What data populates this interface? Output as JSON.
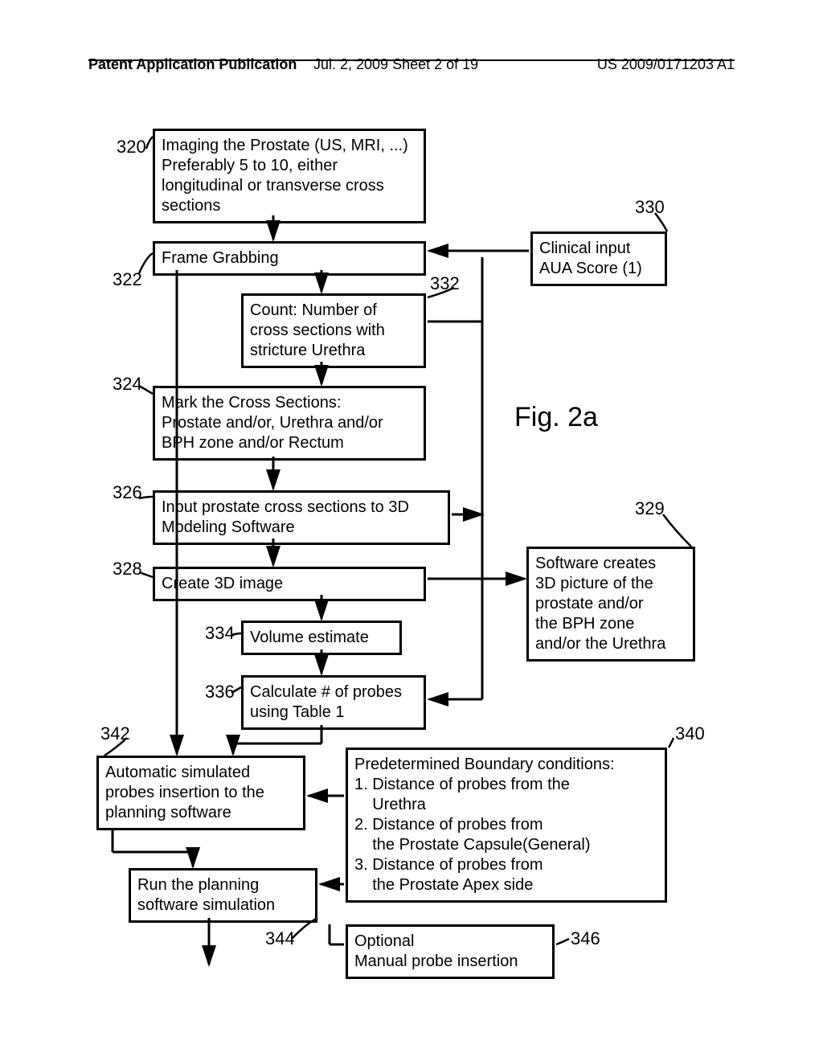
{
  "header": {
    "left": "Patent Application Publication",
    "mid": "Jul. 2, 2009  Sheet 2 of 19",
    "right": "US 2009/0171203 A1"
  },
  "figure_label": "Fig. 2a",
  "boxes": {
    "b320": "Imaging the Prostate (US, MRI, ...)\nPreferably 5 to 10, either\nlongitudinal or transverse cross\nsections",
    "b322": "Frame Grabbing",
    "b332": "Count: Number of\ncross sections with\nstricture Urethra",
    "b330": "Clinical input\nAUA Score (1)",
    "b324": "Mark the Cross Sections:\nProstate and/or, Urethra and/or\nBPH zone and/or Rectum",
    "b326": "Input prostate cross sections to 3D\nModeling Software",
    "b328": "Create 3D image",
    "b329": "Software creates\n3D picture of the\nprostate and/or\nthe BPH zone\nand/or the Urethra",
    "b334": "Volume estimate",
    "b336": "Calculate # of probes\nusing Table 1",
    "b342": "Automatic simulated\nprobes insertion to the\nplanning software",
    "b340": "Predetermined Boundary conditions:\n1. Distance of probes from the\n    Urethra\n2. Distance of probes from\n    the Prostate Capsule(General)\n3. Distance of probes from\n    the Prostate Apex side",
    "b344": "Run the planning\nsoftware simulation",
    "b346": "Optional\nManual probe insertion"
  },
  "labels": {
    "l320": "320",
    "l322": "322",
    "l324": "324",
    "l326": "326",
    "l328": "328",
    "l329": "329",
    "l330": "330",
    "l332": "332",
    "l334": "334",
    "l336": "336",
    "l340": "340",
    "l342": "342",
    "l344": "344",
    "l346": "346"
  },
  "colors": {
    "stroke": "#000000",
    "bg": "#ffffff"
  }
}
